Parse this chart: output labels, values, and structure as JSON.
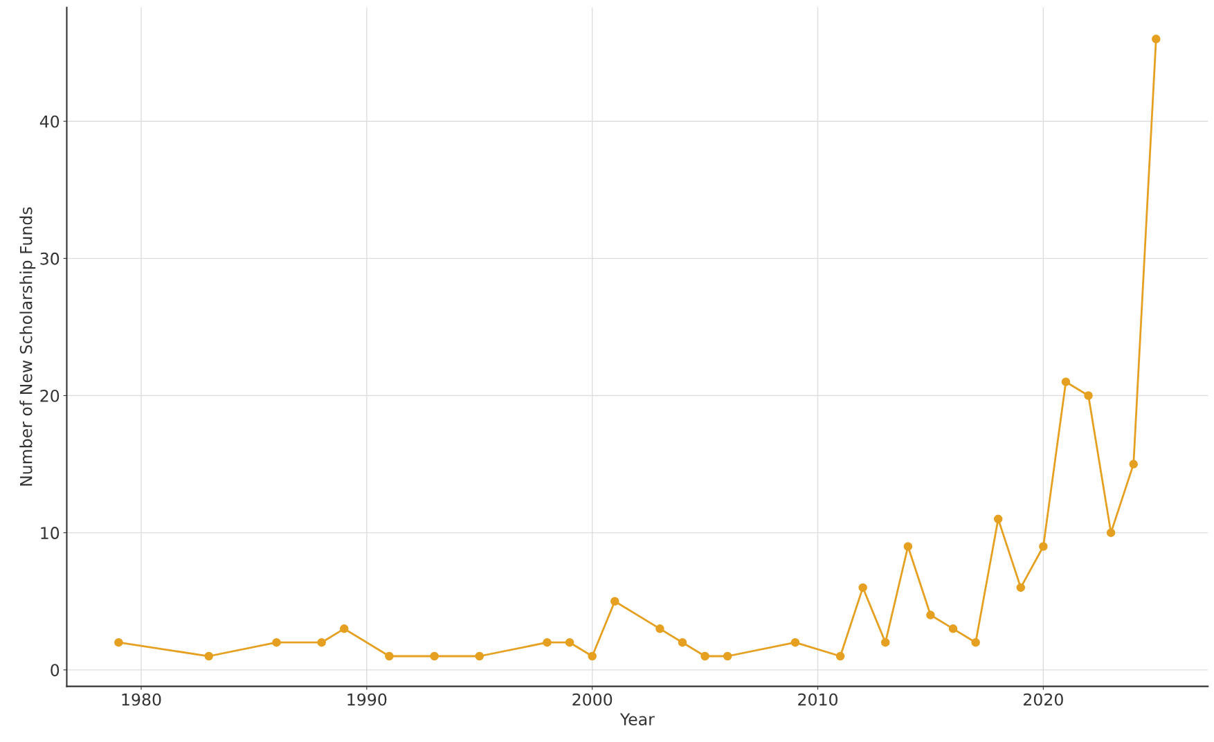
{
  "chart_data": {
    "type": "line",
    "xlabel": "Year",
    "ylabel": "Number of New Scholarship Funds",
    "x": [
      1979,
      1983,
      1986,
      1988,
      1989,
      1991,
      1993,
      1995,
      1998,
      1999,
      2000,
      2001,
      2003,
      2004,
      2005,
      2006,
      2009,
      2011,
      2012,
      2013,
      2014,
      2015,
      2016,
      2017,
      2018,
      2019,
      2020,
      2021,
      2022,
      2023,
      2024,
      2025
    ],
    "series": [
      {
        "color": "#e5a021",
        "values": [
          2,
          1,
          2,
          2,
          3,
          1,
          1,
          1,
          2,
          2,
          1,
          5,
          3,
          2,
          1,
          1,
          2,
          1,
          6,
          2,
          9,
          4,
          3,
          2,
          11,
          6,
          9,
          21,
          20,
          10,
          15,
          46
        ]
      }
    ],
    "xlim": [
      1976.7,
      2027.3
    ],
    "ylim": [
      -1.2,
      48.3
    ],
    "xticks": [
      1980,
      1990,
      2000,
      2010,
      2020
    ],
    "yticks": [
      0,
      10,
      20,
      30,
      40
    ],
    "grid": true,
    "marker": "circle",
    "line_style": "solid"
  }
}
